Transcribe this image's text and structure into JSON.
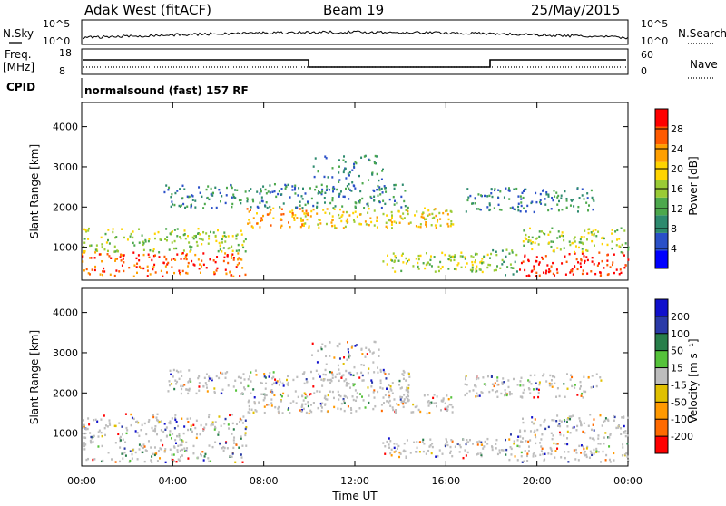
{
  "header": {
    "station": "Adak West (fitACF)",
    "beam": "Beam 19",
    "date": "25/May/2015"
  },
  "strip_labels": {
    "nsky": "N.Sky",
    "nsearch": "N.Search",
    "freq": "Freq.",
    "freq_unit": "[MHz]",
    "nave": "Nave",
    "cpid": "CPID",
    "cpid_text": "normalsound (fast) 157 RF"
  },
  "strip_ticks": {
    "nsky_left": [
      "10^5",
      "10^0"
    ],
    "nsearch_right": [
      "10^5",
      "10^0"
    ],
    "freq_left": [
      "18",
      "8"
    ],
    "nave_right": [
      "60",
      "0"
    ]
  },
  "colors": {
    "power_scale": [
      "#0000ff",
      "#2a50c8",
      "#2d8a6e",
      "#4ca84c",
      "#9acb35",
      "#ffd400",
      "#ff9f00",
      "#ff5a00",
      "#ff0000"
    ],
    "velocity_scale": [
      "#1010cc",
      "#2a3aa8",
      "#287e4a",
      "#55c23a",
      "#bdbdbd",
      "#e0c000",
      "#ff9900",
      "#ff6a00",
      "#ff0000"
    ]
  },
  "chart_data": [
    {
      "type": "heatmap",
      "panel": "power",
      "ylabel": "Slant Range [km]",
      "ylim": [
        180,
        4600
      ],
      "yticks": [
        "1000",
        "2000",
        "3000",
        "4000"
      ],
      "xticks": [
        "00:00",
        "04:00",
        "08:00",
        "12:00",
        "16:00",
        "20:00",
        "00:00"
      ],
      "colorbar_label": "Power [dB]",
      "colorbar_ticks": [
        "4",
        "8",
        "12",
        "16",
        "20",
        "24",
        "28"
      ]
    },
    {
      "type": "heatmap",
      "panel": "velocity",
      "ylabel": "Slant Range [km]",
      "xlabel": "Time UT",
      "ylim": [
        180,
        4600
      ],
      "yticks": [
        "1000",
        "2000",
        "3000",
        "4000"
      ],
      "xticks": [
        "00:00",
        "04:00",
        "08:00",
        "12:00",
        "16:00",
        "20:00",
        "00:00"
      ],
      "colorbar_label": "Velocity [m s⁻¹]",
      "colorbar_ticks": [
        "200",
        "100",
        "50",
        "15",
        "-15",
        "-50",
        "-100",
        "-200"
      ]
    }
  ]
}
